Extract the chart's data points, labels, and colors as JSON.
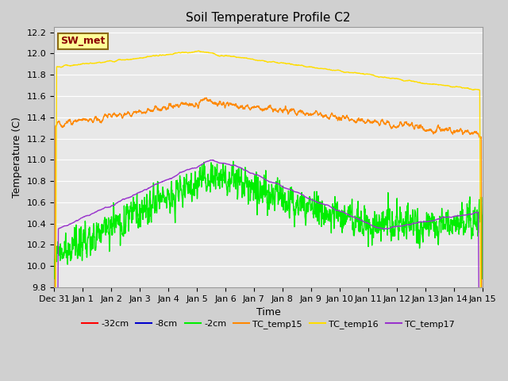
{
  "title": "Soil Temperature Profile C2",
  "xlabel": "Time",
  "ylabel": "Temperature (C)",
  "ylim_min": 9.8,
  "ylim_max": 12.25,
  "fig_bg": "#d0d0d0",
  "plot_bg": "#e8e8e8",
  "annotation_text": "SW_met",
  "annotation_color": "#8b0000",
  "annotation_bg": "#ffff99",
  "annotation_border": "#8b6914",
  "color_32cm": "#ff0000",
  "color_8cm": "#0000cc",
  "color_2cm": "#00ee00",
  "color_tc15": "#ff8800",
  "color_tc16": "#ffdd00",
  "color_tc17": "#9933cc",
  "xtick_labels": [
    "Dec 31",
    "Jan 1",
    "Jan 2",
    "Jan 3",
    "Jan 4",
    "Jan 5",
    "Jan 6",
    "Jan 7",
    "Jan 8",
    "Jan 9",
    "Jan 10",
    "Jan 11",
    "Jan 12",
    "Jan 13",
    "Jan 14",
    "Jan 15"
  ],
  "grid_color": "#ffffff",
  "lw_main": 1.0,
  "title_fontsize": 11,
  "tick_fontsize": 8,
  "label_fontsize": 9,
  "legend_fontsize": 8
}
